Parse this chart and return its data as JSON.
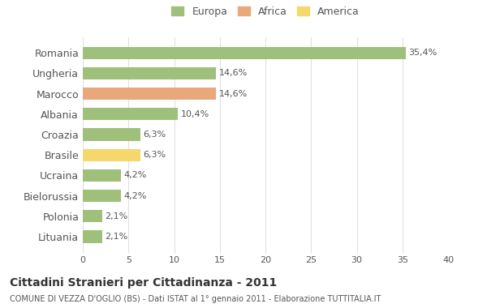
{
  "categories": [
    "Romania",
    "Ungheria",
    "Marocco",
    "Albania",
    "Croazia",
    "Brasile",
    "Ucraina",
    "Bielorussia",
    "Polonia",
    "Lituania"
  ],
  "values": [
    35.4,
    14.6,
    14.6,
    10.4,
    6.3,
    6.3,
    4.2,
    4.2,
    2.1,
    2.1
  ],
  "labels": [
    "35,4%",
    "14,6%",
    "14,6%",
    "10,4%",
    "6,3%",
    "6,3%",
    "4,2%",
    "4,2%",
    "2,1%",
    "2,1%"
  ],
  "colors": [
    "#9fc07a",
    "#9fc07a",
    "#e8a87c",
    "#9fc07a",
    "#9fc07a",
    "#f5d76e",
    "#9fc07a",
    "#9fc07a",
    "#9fc07a",
    "#9fc07a"
  ],
  "legend_labels": [
    "Europa",
    "Africa",
    "America"
  ],
  "legend_colors": [
    "#9fc07a",
    "#e8a87c",
    "#f5d76e"
  ],
  "title": "Cittadini Stranieri per Cittadinanza - 2011",
  "subtitle": "COMUNE DI VEZZA D'OGLIO (BS) - Dati ISTAT al 1° gennaio 2011 - Elaborazione TUTTITALIA.IT",
  "xlim": [
    0,
    40
  ],
  "xticks": [
    0,
    5,
    10,
    15,
    20,
    25,
    30,
    35,
    40
  ],
  "background_color": "#ffffff",
  "grid_color": "#e0e0e0",
  "bar_height": 0.6
}
